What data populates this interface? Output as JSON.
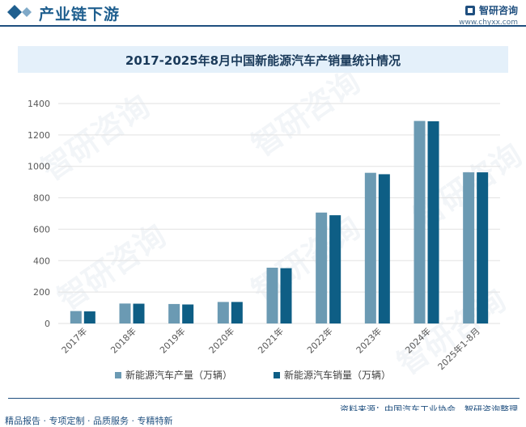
{
  "header": {
    "title": "产业链下游",
    "brand_name": "智研咨询",
    "brand_url": "www.chyxx.com"
  },
  "watermark": "智研咨询",
  "chart_data": {
    "type": "bar",
    "title": "2017-2025年8月中国新能源汽车产销量统计情况",
    "categories": [
      "2017年",
      "2018年",
      "2019年",
      "2020年",
      "2021年",
      "2022年",
      "2023年",
      "2024年",
      "2025年1-8月"
    ],
    "series": [
      {
        "name": "新能源汽车产量（万辆）",
        "color": "#6b9ab3",
        "values": [
          79,
          127,
          124,
          137,
          355,
          706,
          959,
          1289,
          962
        ]
      },
      {
        "name": "新能源汽车销量（万辆）",
        "color": "#0e5e85",
        "values": [
          77,
          126,
          121,
          137,
          352,
          689,
          950,
          1287,
          962
        ]
      }
    ],
    "ylim": [
      0,
      1400
    ],
    "yticks": [
      0,
      200,
      400,
      600,
      800,
      1000,
      1200,
      1400
    ],
    "grid": true,
    "legend": "bottom"
  },
  "footer": {
    "source": "资料来源：中国汽车工业协会、智研咨询整理",
    "tagline": "精品报告 · 专项定制 · 品质服务 · 专精特新"
  },
  "colors": {
    "brand": "#1f4f7f",
    "grid": "#e2e2e2",
    "axis_text": "#595959"
  }
}
